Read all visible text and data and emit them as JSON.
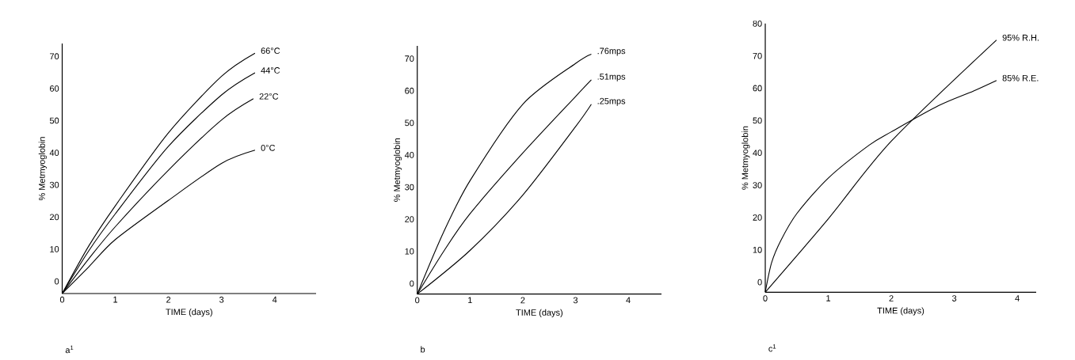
{
  "chart_data": [
    {
      "type": "line",
      "xlabel": "TIME (days)",
      "ylabel": "% Metmyoglobin",
      "xlim": [
        0,
        4.78
      ],
      "ylim": [
        -3.8,
        74
      ],
      "xticks": [
        0,
        1,
        2,
        3,
        4
      ],
      "yticks": [
        0,
        10,
        20,
        30,
        40,
        50,
        60,
        70
      ],
      "annotations": [
        "a$^{1}$"
      ],
      "series": [
        {
          "name": "66°C",
          "color": "#000000",
          "x": [
            0,
            0.5,
            1,
            2,
            3,
            3.63
          ],
          "values": [
            -3.8,
            11,
            23.5,
            46.2,
            63.8,
            71
          ]
        },
        {
          "name": "44°C",
          "color": "#000000",
          "x": [
            0,
            0.5,
            1,
            2,
            3,
            3.63
          ],
          "values": [
            -3.8,
            9.5,
            21,
            42,
            58,
            64.9
          ]
        },
        {
          "name": "22°C",
          "color": "#000000",
          "x": [
            0,
            0.5,
            1,
            2,
            3,
            3.6
          ],
          "values": [
            -3.8,
            7,
            17,
            34.6,
            50.2,
            56.8
          ]
        },
        {
          "name": "0°C",
          "color": "#000000",
          "x": [
            0,
            0.5,
            1,
            2,
            3,
            3.63
          ],
          "values": [
            -3.8,
            4.5,
            13,
            25.2,
            36.7,
            40.8
          ]
        }
      ]
    },
    {
      "type": "line",
      "xlabel": "TIME (days)",
      "ylabel": "% Metmyoglobin",
      "xlim": [
        0,
        4.63
      ],
      "ylim": [
        -3.3,
        74
      ],
      "xticks": [
        0,
        1,
        2,
        3,
        4
      ],
      "yticks": [
        0,
        10,
        20,
        30,
        40,
        50,
        60,
        70
      ],
      "annotations": [
        "b"
      ],
      "series": [
        {
          "name": ".76mps",
          "color": "#000000",
          "x": [
            0,
            0.5,
            1,
            2,
            3,
            3.3
          ],
          "values": [
            -3.3,
            16,
            32,
            55.8,
            68.5,
            71.4
          ]
        },
        {
          "name": ".51mps",
          "color": "#000000",
          "x": [
            0,
            0.5,
            1,
            2,
            3,
            3.3
          ],
          "values": [
            -3.3,
            10,
            21.7,
            40.6,
            58.2,
            63.4
          ]
        },
        {
          "name": ".25mps",
          "color": "#000000",
          "x": [
            0,
            1,
            2,
            3,
            3.3
          ],
          "values": [
            -3.3,
            10.3,
            27.5,
            48.8,
            55.8
          ]
        }
      ]
    },
    {
      "type": "line",
      "xlabel": "TIME (days)",
      "ylabel": "% Metmyoglobin",
      "xlim": [
        0,
        4.3
      ],
      "ylim": [
        -3.1,
        80
      ],
      "xticks": [
        0,
        1,
        2,
        3,
        4
      ],
      "yticks": [
        0,
        10,
        20,
        30,
        40,
        50,
        60,
        70,
        80
      ],
      "annotations": [
        "c$^{1}$"
      ],
      "series": [
        {
          "name": "95% R.H.",
          "color": "#000000",
          "x": [
            0,
            1,
            2,
            3.67
          ],
          "values": [
            -3.1,
            19.6,
            43.6,
            74.9
          ]
        },
        {
          "name": "85% R.E.",
          "color": "#000000",
          "x": [
            0,
            0.1,
            0.25,
            0.5,
            1,
            1.65,
            2,
            2.75,
            3.3,
            3.67
          ],
          "values": [
            -3.1,
            6,
            13,
            21.2,
            32.2,
            42.4,
            46.5,
            54.6,
            59.1,
            62.4
          ]
        }
      ]
    }
  ]
}
